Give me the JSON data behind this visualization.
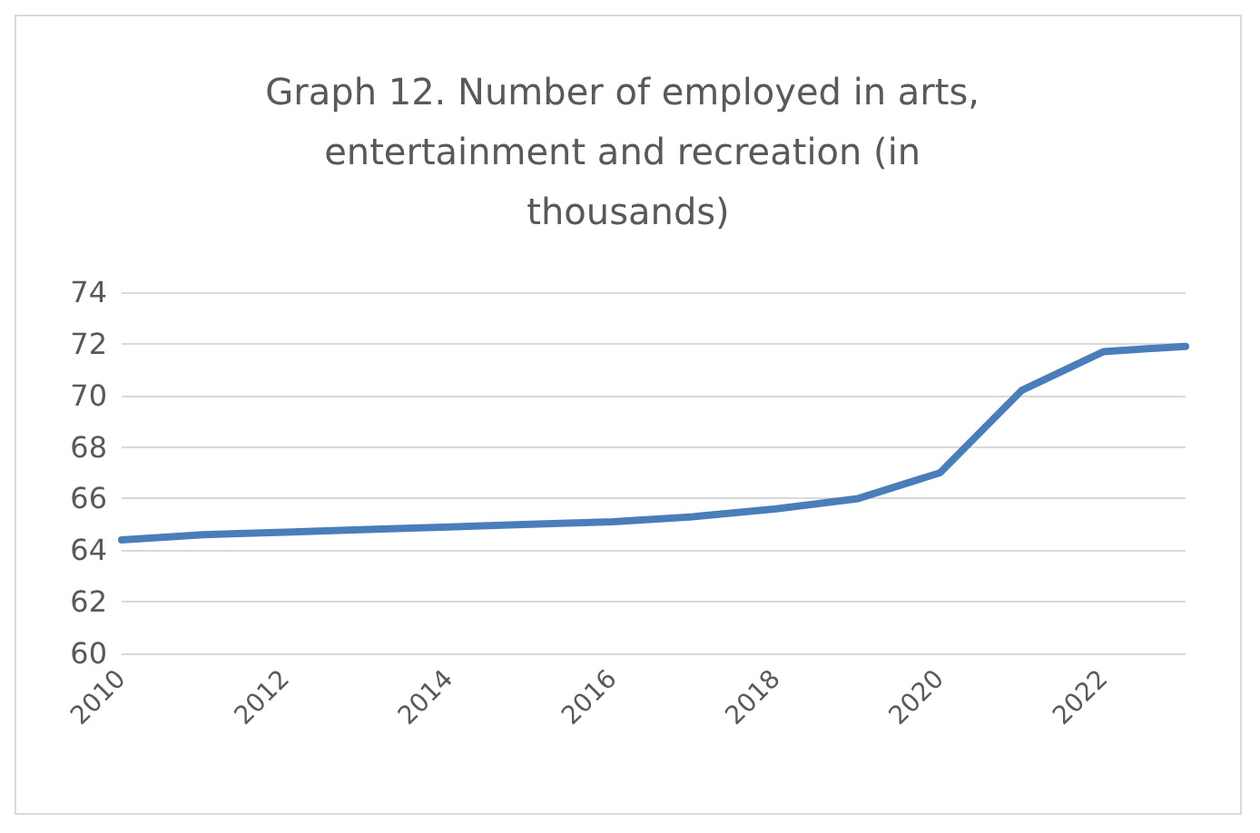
{
  "chart_data": {
    "type": "line",
    "title": "Graph 12. Number of employed in arts, entertainment and recreation (in thousands)",
    "categories": [
      "2010",
      null,
      "2012",
      null,
      "2014",
      null,
      "2016",
      null,
      "2018",
      null,
      "2020",
      null,
      "2022",
      null
    ],
    "series": [
      {
        "color": "#4a7ebb",
        "values": [
          64.4,
          64.6,
          64.7,
          64.8,
          64.9,
          65.0,
          65.1,
          65.3,
          65.6,
          66.0,
          67.0,
          70.2,
          71.7,
          71.9
        ]
      }
    ],
    "ylim": [
      60,
      74
    ],
    "yticks": [
      60,
      62,
      64,
      66,
      68,
      70,
      72,
      74
    ],
    "grid": "y",
    "marker": "none",
    "line_style": "solid"
  }
}
